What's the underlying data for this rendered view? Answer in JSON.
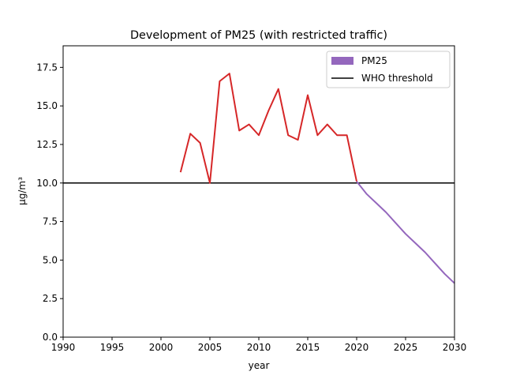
{
  "chart_data": {
    "type": "line",
    "title": "Development of PM25 (with restricted traffic)",
    "xlabel": "year",
    "ylabel": "µg/m³",
    "xlim": [
      1990,
      2030
    ],
    "ylim": [
      0,
      18.9
    ],
    "xticks": [
      "1990",
      "1995",
      "2000",
      "2005",
      "2010",
      "2015",
      "2020",
      "2025",
      "2030"
    ],
    "yticks": [
      "0.0",
      "2.5",
      "5.0",
      "7.5",
      "10.0",
      "12.5",
      "15.0",
      "17.5"
    ],
    "grid": false,
    "legend_position": "top-right",
    "threshold": {
      "name": "WHO threshold",
      "value": 10.0,
      "color": "#000000"
    },
    "series": [
      {
        "name": "",
        "color": "#d62728",
        "x": [
          2002,
          2003,
          2004,
          2005,
          2006,
          2007,
          2008,
          2009,
          2010,
          2011,
          2012,
          2013,
          2014,
          2015,
          2016,
          2017,
          2018,
          2019,
          2020
        ],
        "y": [
          10.7,
          13.2,
          12.6,
          10.0,
          16.6,
          17.1,
          13.4,
          13.8,
          13.1,
          14.7,
          16.1,
          13.1,
          12.8,
          15.7,
          13.1,
          13.8,
          13.1,
          13.1,
          10.1
        ]
      },
      {
        "name": "PM25",
        "color": "#9467bd",
        "x": [
          2020,
          2021,
          2022,
          2023,
          2024,
          2025,
          2026,
          2027,
          2028,
          2029,
          2030
        ],
        "y": [
          10.1,
          9.3,
          8.7,
          8.1,
          7.4,
          6.7,
          6.1,
          5.5,
          4.8,
          4.1,
          3.5
        ]
      }
    ]
  }
}
